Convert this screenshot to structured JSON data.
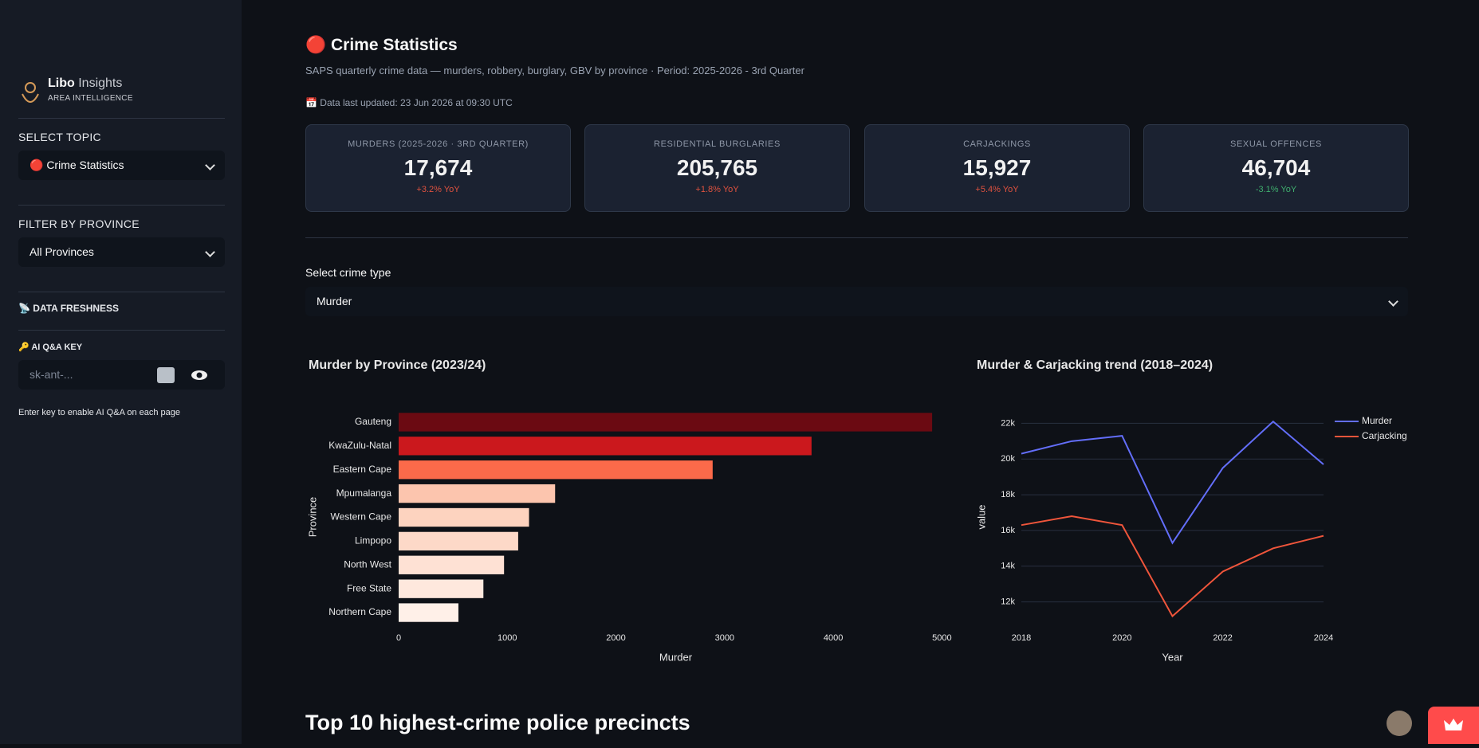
{
  "sidebar": {
    "brand": "Libo",
    "brand_suffix": "Insights",
    "tagline": "AREA INTELLIGENCE",
    "topic_label": "SELECT TOPIC",
    "topic_value": "🔴 Crime Statistics",
    "province_label": "FILTER BY PROVINCE",
    "province_value": "All Provinces",
    "freshness": "📡 DATA FRESHNESS",
    "key_label": "🔑 AI Q&A KEY",
    "key_placeholder": "sk-ant-...",
    "key_hint": "Enter key to enable AI Q&A on each page"
  },
  "header": {
    "title": "🔴 Crime Statistics",
    "subtitle": "SAPS quarterly crime data — murders, robbery, burglary, GBV by province · Period: 2025-2026 - 3rd Quarter",
    "updated": "📅 Data last updated: 23 Jun 2026 at 09:30 UTC"
  },
  "kpis": [
    {
      "label": "MURDERS (2025-2026 · 3RD QUARTER)",
      "value": "17,674",
      "delta": "+3.2% YoY",
      "delta_color": "#e0523f"
    },
    {
      "label": "RESIDENTIAL BURGLARIES",
      "value": "205,765",
      "delta": "+1.8% YoY",
      "delta_color": "#e0523f"
    },
    {
      "label": "CARJACKINGS",
      "value": "15,927",
      "delta": "+5.4% YoY",
      "delta_color": "#e0523f"
    },
    {
      "label": "SEXUAL OFFENCES",
      "value": "46,704",
      "delta": "-3.1% YoY",
      "delta_color": "#3fae6e"
    }
  ],
  "crime_select": {
    "label": "Select crime type",
    "value": "Murder"
  },
  "chart_data": [
    {
      "type": "bar",
      "orientation": "horizontal",
      "title": "Murder by Province (2023/24)",
      "categories": [
        "Gauteng",
        "KwaZulu-Natal",
        "Eastern Cape",
        "Mpumalanga",
        "Western Cape",
        "Limpopo",
        "North West",
        "Free State",
        "Northern Cape"
      ],
      "values": [
        4910,
        3800,
        2890,
        1440,
        1200,
        1100,
        970,
        780,
        550
      ],
      "colors": [
        "#6b0a12",
        "#cb181d",
        "#fb6a4a",
        "#fcc5ae",
        "#fdd3bf",
        "#fdd9c8",
        "#fee1d4",
        "#fee8dd",
        "#fff0e8"
      ],
      "xlim": [
        0,
        5100
      ],
      "xticks": [
        0,
        1000,
        2000,
        3000,
        4000,
        5000
      ],
      "x_label": "Murder",
      "y_label": "Province"
    },
    {
      "type": "line",
      "title": "Murder & Carjacking trend (2018–2024)",
      "x": [
        2018,
        2019,
        2020,
        2021,
        2022,
        2023,
        2024
      ],
      "series": [
        {
          "name": "Murder",
          "color": "#636efa",
          "values": [
            20300,
            21000,
            21300,
            15300,
            19500,
            22100,
            19700
          ]
        },
        {
          "name": "Carjacking",
          "color": "#ef553b",
          "values": [
            16300,
            16800,
            16300,
            11200,
            13700,
            15000,
            15700
          ]
        }
      ],
      "xlim": [
        2018,
        2024
      ],
      "xticks": [
        2018,
        2020,
        2022,
        2024
      ],
      "ylim": [
        11000,
        23000
      ],
      "yticks": [
        {
          "value": 12000,
          "label": "12k"
        },
        {
          "value": 14000,
          "label": "14k"
        },
        {
          "value": 16000,
          "label": "16k"
        },
        {
          "value": 18000,
          "label": "18k"
        },
        {
          "value": 20000,
          "label": "20k"
        },
        {
          "value": 22000,
          "label": "22k"
        }
      ],
      "x_label": "Year",
      "y_label": "value",
      "grid": true,
      "legend": "top-right"
    }
  ],
  "section_title": "Top 10 highest-crime police precincts"
}
